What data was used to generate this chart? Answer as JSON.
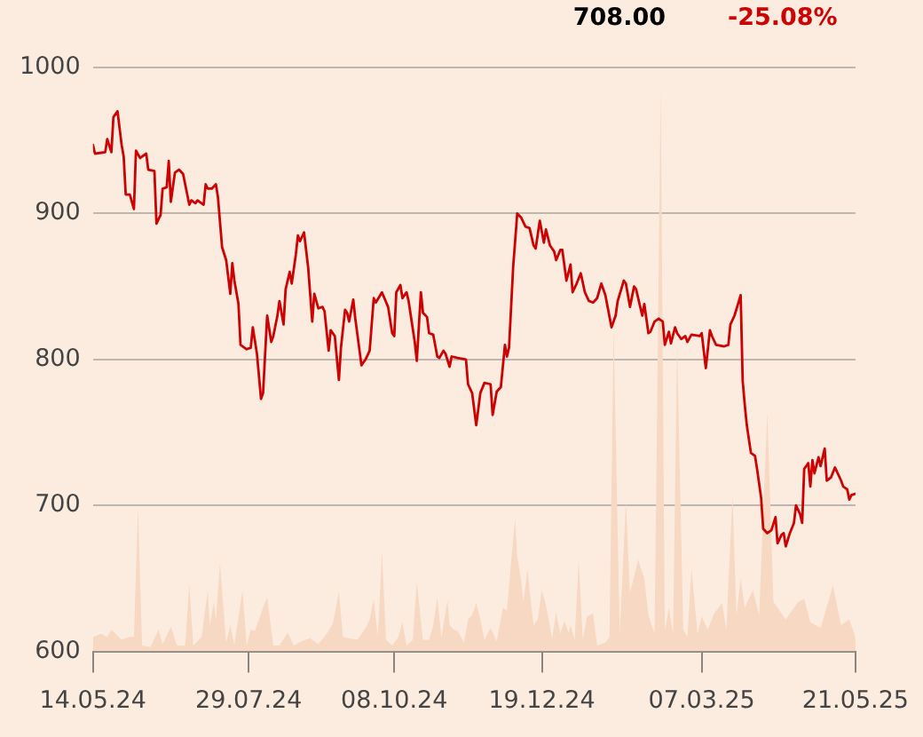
{
  "chart_data": {
    "type": "line",
    "annotations": [
      "708.00",
      "-25.08%"
    ],
    "xlim": [
      "2024-05-14",
      "2025-05-21"
    ],
    "xticks": [
      {
        "value": "2024-05-14",
        "label": "14.05.24"
      },
      {
        "value": "2024-07-29",
        "label": "29.07.24"
      },
      {
        "value": "2024-10-08",
        "label": "08.10.24"
      },
      {
        "value": "2024-12-19",
        "label": "19.12.24"
      },
      {
        "value": "2025-03-07",
        "label": "07.03.25"
      },
      {
        "value": "2025-05-21",
        "label": "21.05.25"
      }
    ],
    "ylim": [
      600,
      1000
    ],
    "yticks": [
      600,
      700,
      800,
      900,
      1000
    ],
    "grid": "y",
    "series": [
      {
        "type": "line",
        "color": "#cc0000",
        "x": [
          "2024-05-14",
          "2024-05-15",
          "2024-05-20",
          "2024-05-21",
          "2024-05-23",
          "2024-05-24",
          "2024-05-26",
          "2024-05-28",
          "2024-05-29",
          "2024-05-30",
          "2024-06-01",
          "2024-06-03",
          "2024-06-04",
          "2024-06-06",
          "2024-06-09",
          "2024-06-10",
          "2024-06-13",
          "2024-06-14",
          "2024-06-16",
          "2024-06-17",
          "2024-06-19",
          "2024-06-20",
          "2024-06-21",
          "2024-06-23",
          "2024-06-25",
          "2024-06-27",
          "2024-06-30",
          "2024-07-01",
          "2024-07-03",
          "2024-07-04",
          "2024-07-07",
          "2024-07-08",
          "2024-07-09",
          "2024-07-11",
          "2024-07-13",
          "2024-07-14",
          "2024-07-16",
          "2024-07-18",
          "2024-07-20",
          "2024-07-21",
          "2024-07-22",
          "2024-07-24",
          "2024-07-25",
          "2024-07-28",
          "2024-07-30",
          "2024-07-31",
          "2024-08-02",
          "2024-08-04",
          "2024-08-05",
          "2024-08-07",
          "2024-08-09",
          "2024-08-10",
          "2024-08-12",
          "2024-08-13",
          "2024-08-15",
          "2024-08-16",
          "2024-08-18",
          "2024-08-19",
          "2024-08-21",
          "2024-08-22",
          "2024-08-23",
          "2024-08-25",
          "2024-08-27",
          "2024-08-29",
          "2024-08-30",
          "2024-09-01",
          "2024-09-03",
          "2024-09-04",
          "2024-09-06",
          "2024-09-07",
          "2024-09-09",
          "2024-09-11",
          "2024-09-12",
          "2024-09-14",
          "2024-09-15",
          "2024-09-16",
          "2024-09-18",
          "2024-09-19",
          "2024-09-22",
          "2024-09-24",
          "2024-09-26",
          "2024-09-28",
          "2024-09-29",
          "2024-10-02",
          "2024-10-05",
          "2024-10-07",
          "2024-10-08",
          "2024-10-09",
          "2024-10-11",
          "2024-10-12",
          "2024-10-14",
          "2024-10-15",
          "2024-10-18",
          "2024-10-19",
          "2024-10-21",
          "2024-10-22",
          "2024-10-24",
          "2024-10-25",
          "2024-10-27",
          "2024-10-29",
          "2024-10-30",
          "2024-11-01",
          "2024-11-02",
          "2024-11-04",
          "2024-11-05",
          "2024-11-08",
          "2024-11-12",
          "2024-11-13",
          "2024-11-15",
          "2024-11-17",
          "2024-11-19",
          "2024-11-21",
          "2024-11-24",
          "2024-11-25",
          "2024-11-27",
          "2024-11-29",
          "2024-12-01",
          "2024-12-02",
          "2024-12-03",
          "2024-12-05",
          "2024-12-07",
          "2024-12-09",
          "2024-12-11",
          "2024-12-13",
          "2024-12-15",
          "2024-12-16",
          "2024-12-18",
          "2024-12-20",
          "2024-12-21",
          "2024-12-23",
          "2024-12-25",
          "2024-12-26",
          "2024-12-28",
          "2024-12-29",
          "2024-12-31",
          "2025-01-02",
          "2025-01-03",
          "2025-01-05",
          "2025-01-07",
          "2025-01-09",
          "2025-01-11",
          "2025-01-13",
          "2025-01-15",
          "2025-01-17",
          "2025-01-19",
          "2025-01-22",
          "2025-01-24",
          "2025-01-25",
          "2025-01-28",
          "2025-01-29",
          "2025-01-31",
          "2025-02-02",
          "2025-02-03",
          "2025-02-06",
          "2025-02-07",
          "2025-02-09",
          "2025-02-10",
          "2025-02-12",
          "2025-02-14",
          "2025-02-16",
          "2025-02-17",
          "2025-02-19",
          "2025-02-20",
          "2025-02-22",
          "2025-02-23",
          "2025-02-25",
          "2025-02-27",
          "2025-02-28",
          "2025-03-02",
          "2025-03-06",
          "2025-03-07",
          "2025-03-09",
          "2025-03-11",
          "2025-03-12",
          "2025-03-14",
          "2025-03-18",
          "2025-03-20",
          "2025-03-21",
          "2025-03-23",
          "2025-03-26",
          "2025-03-27",
          "2025-03-28",
          "2025-03-29",
          "2025-03-31",
          "2025-04-02",
          "2025-04-03",
          "2025-04-05",
          "2025-04-06",
          "2025-04-08",
          "2025-04-10",
          "2025-04-12",
          "2025-04-13",
          "2025-04-15",
          "2025-04-16",
          "2025-04-17",
          "2025-04-19",
          "2025-04-21",
          "2025-04-22",
          "2025-04-24",
          "2025-04-25",
          "2025-04-26",
          "2025-04-28",
          "2025-04-29",
          "2025-04-30",
          "2025-05-01",
          "2025-05-03",
          "2025-05-04",
          "2025-05-06",
          "2025-05-07",
          "2025-05-09",
          "2025-05-11",
          "2025-05-12",
          "2025-05-14",
          "2025-05-15",
          "2025-05-17",
          "2025-05-18",
          "2025-05-19",
          "2025-05-21"
        ],
        "values": [
          947,
          941,
          942,
          951,
          942,
          966,
          970,
          947,
          939,
          913,
          913,
          903,
          943,
          938,
          941,
          930,
          929,
          893,
          899,
          917,
          918,
          936,
          908,
          928,
          930,
          927,
          906,
          909,
          907,
          909,
          906,
          920,
          917,
          917,
          920,
          911,
          877,
          868,
          845,
          866,
          854,
          838,
          810,
          807,
          808,
          822,
          804,
          773,
          777,
          830,
          812,
          816,
          830,
          840,
          824,
          848,
          860,
          852,
          872,
          885,
          881,
          887,
          863,
          826,
          845,
          835,
          836,
          833,
          806,
          820,
          816,
          786,
          808,
          834,
          832,
          826,
          841,
          828,
          796,
          800,
          806,
          842,
          839,
          846,
          836,
          818,
          816,
          846,
          851,
          842,
          846,
          840,
          812,
          799,
          846,
          832,
          829,
          818,
          817,
          802,
          801,
          806,
          804,
          795,
          802,
          801,
          800,
          783,
          777,
          755,
          777,
          784,
          783,
          762,
          778,
          781,
          810,
          802,
          808,
          863,
          900,
          897,
          891,
          890,
          878,
          876,
          895,
          880,
          889,
          878,
          874,
          868,
          875,
          875,
          854,
          865,
          846,
          852,
          859,
          846,
          840,
          839,
          842,
          852,
          844,
          822,
          830,
          840,
          854,
          852,
          836,
          850,
          848,
          830,
          838,
          818,
          819,
          826,
          828,
          826,
          810,
          819,
          811,
          822,
          818,
          814,
          816,
          812,
          817,
          816,
          818,
          794,
          820,
          816,
          810,
          809,
          810,
          824,
          830,
          844,
          785,
          769,
          755,
          736,
          734,
          725,
          705,
          684,
          681,
          683,
          692,
          674,
          680,
          681,
          672,
          681,
          688,
          700,
          694,
          688,
          725,
          729,
          713,
          731,
          722,
          733,
          727,
          739,
          717,
          719,
          726,
          723,
          717,
          713,
          711,
          704,
          707,
          708
        ]
      },
      {
        "type": "area",
        "color": "#f7d9c3",
        "x": [
          "2024-05-14",
          "2024-05-18",
          "2024-05-21",
          "2024-05-23",
          "2024-05-28",
          "2024-06-01",
          "2024-06-03",
          "2024-06-05",
          "2024-06-07",
          "2024-06-11",
          "2024-06-15",
          "2024-06-17",
          "2024-06-21",
          "2024-06-24",
          "2024-06-28",
          "2024-06-30",
          "2024-07-02",
          "2024-07-06",
          "2024-07-09",
          "2024-07-10",
          "2024-07-12",
          "2024-07-13",
          "2024-07-15",
          "2024-07-16",
          "2024-07-18",
          "2024-07-20",
          "2024-07-22",
          "2024-07-26",
          "2024-07-28",
          "2024-07-30",
          "2024-08-01",
          "2024-08-05",
          "2024-08-07",
          "2024-08-10",
          "2024-08-13",
          "2024-08-17",
          "2024-08-20",
          "2024-08-24",
          "2024-08-28",
          "2024-09-01",
          "2024-09-05",
          "2024-09-08",
          "2024-09-11",
          "2024-09-13",
          "2024-09-16",
          "2024-09-20",
          "2024-09-24",
          "2024-09-26",
          "2024-09-28",
          "2024-09-30",
          "2024-10-02",
          "2024-10-04",
          "2024-10-07",
          "2024-10-10",
          "2024-10-12",
          "2024-10-14",
          "2024-10-17",
          "2024-10-19",
          "2024-10-22",
          "2024-10-25",
          "2024-10-27",
          "2024-10-29",
          "2024-10-31",
          "2024-11-03",
          "2024-11-04",
          "2024-11-06",
          "2024-11-08",
          "2024-11-11",
          "2024-11-13",
          "2024-11-15",
          "2024-11-17",
          "2024-11-19",
          "2024-11-21",
          "2024-11-24",
          "2024-11-27",
          "2024-11-30",
          "2024-12-02",
          "2024-12-04",
          "2024-12-06",
          "2024-12-07",
          "2024-12-09",
          "2024-12-10",
          "2024-12-12",
          "2024-12-13",
          "2024-12-15",
          "2024-12-17",
          "2024-12-19",
          "2024-12-21",
          "2024-12-24",
          "2024-12-26",
          "2024-12-28",
          "2024-12-30",
          "2025-01-01",
          "2025-01-02",
          "2025-01-04",
          "2025-01-06",
          "2025-01-08",
          "2025-01-10",
          "2025-01-13",
          "2025-01-15",
          "2025-01-19",
          "2025-01-21",
          "2025-01-23",
          "2025-01-26",
          "2025-01-29",
          "2025-01-31",
          "2025-02-04",
          "2025-02-07",
          "2025-02-09",
          "2025-02-12",
          "2025-02-15",
          "2025-02-17",
          "2025-02-19",
          "2025-02-21",
          "2025-02-23",
          "2025-02-26",
          "2025-02-28",
          "2025-03-02",
          "2025-03-05",
          "2025-03-07",
          "2025-03-10",
          "2025-03-13",
          "2025-03-17",
          "2025-03-19",
          "2025-03-22",
          "2025-03-24",
          "2025-03-26",
          "2025-03-28",
          "2025-04-01",
          "2025-04-04",
          "2025-04-08",
          "2025-04-11",
          "2025-04-17",
          "2025-04-23",
          "2025-04-26",
          "2025-04-29",
          "2025-05-04",
          "2025-05-10",
          "2025-05-14",
          "2025-05-18",
          "2025-05-21"
        ],
        "values": [
          610,
          612,
          610,
          615,
          608,
          610,
          610,
          699,
          604,
          603,
          615,
          605,
          617,
          604,
          604,
          646,
          604,
          610,
          642,
          618,
          634,
          622,
          661,
          642,
          606,
          618,
          605,
          642,
          604,
          615,
          614,
          630,
          637,
          604,
          604,
          613,
          604,
          607,
          609,
          605,
          612,
          619,
          641,
          610,
          609,
          608,
          616,
          622,
          636,
          610,
          669,
          608,
          604,
          610,
          620,
          604,
          608,
          648,
          608,
          608,
          618,
          637,
          610,
          635,
          618,
          615,
          614,
          606,
          622,
          625,
          633,
          622,
          608,
          616,
          607,
          630,
          628,
          662,
          691,
          665,
          648,
          634,
          657,
          642,
          618,
          622,
          642,
          632,
          609,
          627,
          612,
          621,
          613,
          618,
          608,
          663,
          608,
          624,
          626,
          604,
          606,
          610,
          822,
          612,
          703,
          640,
          663,
          650,
          625,
          612,
          986,
          615,
          630,
          612,
          810,
          615,
          610,
          657,
          612,
          624,
          615,
          626,
          633,
          615,
          707,
          625,
          650,
          630,
          642,
          625,
          764,
          634,
          622,
          634,
          636,
          620,
          616,
          645,
          618,
          622,
          610
        ]
      }
    ]
  }
}
